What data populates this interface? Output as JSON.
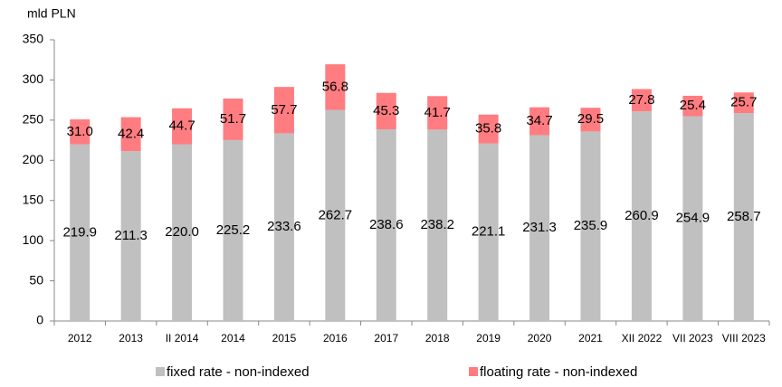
{
  "chart_data": {
    "type": "bar",
    "stacked": true,
    "y_label": "mld PLN",
    "categories": [
      "2012",
      "2013",
      "II 2014",
      "2014",
      "2015",
      "2016",
      "2017",
      "2018",
      "2019",
      "2020",
      "2021",
      "XII 2022",
      "VII 2023",
      "VIII 2023"
    ],
    "series": [
      {
        "name": "fixed rate - non-indexed",
        "color": "#c0c0c0",
        "values": [
          219.9,
          211.3,
          220,
          225.2,
          233.6,
          262.7,
          238.6,
          238.2,
          221.1,
          231.3,
          235.9,
          260.9,
          254.9,
          258.7
        ],
        "value_labels": [
          "219.9",
          "211.3",
          "220.0",
          "225.2",
          "233.6",
          "262.7",
          "238.6",
          "238.2",
          "221.1",
          "231.3",
          "235.9",
          "260.9",
          "254.9",
          "258.7"
        ]
      },
      {
        "name": "floating rate - non-indexed",
        "color": "#ff7c80",
        "values": [
          31,
          42.4,
          44.7,
          51.7,
          57.7,
          56.8,
          45.3,
          41.7,
          35.8,
          34.7,
          29.5,
          27.8,
          25.4,
          25.7
        ],
        "value_labels": [
          "31.0",
          "42.4",
          "44.7",
          "51.7",
          "57.7",
          "56.8",
          "45.3",
          "41.7",
          "35.8",
          "34.7",
          "29.5",
          "27.8",
          "25.4",
          "25.7"
        ]
      }
    ],
    "ylim": [
      0,
      350
    ],
    "yticks": [
      0,
      50,
      100,
      150,
      200,
      250,
      300,
      350
    ],
    "grid": false,
    "legend": "bottom"
  }
}
